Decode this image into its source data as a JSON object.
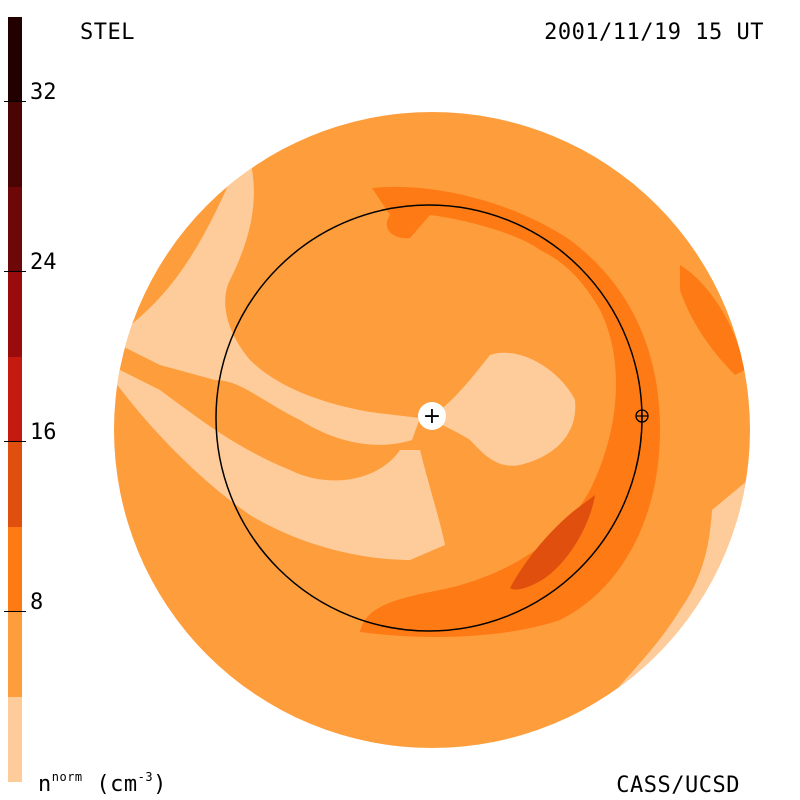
{
  "header": {
    "title": "STEL",
    "datetime": "2001/11/19 15 UT"
  },
  "footer": {
    "units_base": "n",
    "units_super": "norm",
    "units_suffix": "(cm",
    "units_exp": "-3",
    "units_close": ")",
    "credit": "CASS/UCSD"
  },
  "colorbar": {
    "tick_labels": [
      "32",
      "24",
      "16",
      "8"
    ],
    "colors": [
      "#220000",
      "#4a0404",
      "#6e0808",
      "#9a0c0c",
      "#c51a0f",
      "#e04f0e",
      "#fd7a14",
      "#fe9d3c",
      "#fecc9a"
    ]
  },
  "map": {
    "background_color": "#fe9d3c",
    "levels": {
      "lightest": "#fecc9a",
      "light": "#fe9d3c",
      "medium": "#fd7a14",
      "dark": "#e04f0e"
    },
    "markers": {
      "sun": "+",
      "earth": "⊕"
    }
  }
}
